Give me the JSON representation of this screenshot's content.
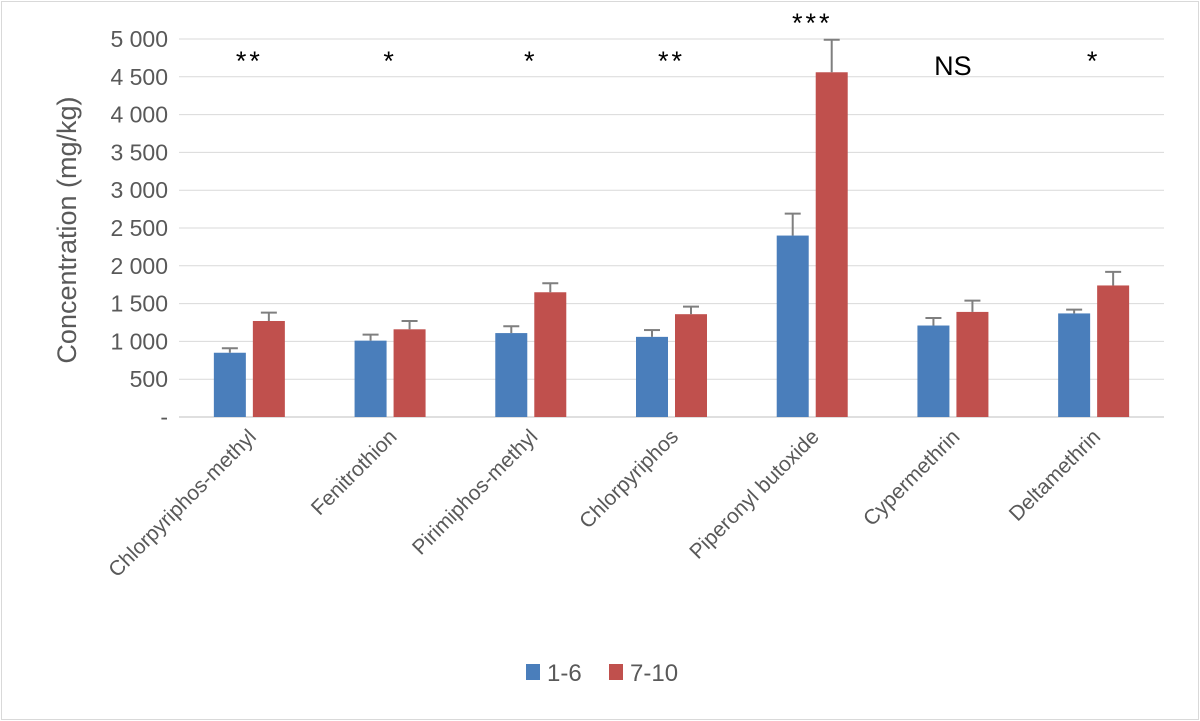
{
  "chart_data": {
    "type": "bar",
    "title": "",
    "xlabel": "",
    "ylabel": "Concentration (mg/kg)",
    "ylim": [
      0,
      5000
    ],
    "yticks": [
      {
        "value": 0,
        "label": "-"
      },
      {
        "value": 500,
        "label": "500"
      },
      {
        "value": 1000,
        "label": "1 000"
      },
      {
        "value": 1500,
        "label": "1 500"
      },
      {
        "value": 2000,
        "label": "2 000"
      },
      {
        "value": 2500,
        "label": "2 500"
      },
      {
        "value": 3000,
        "label": "3 000"
      },
      {
        "value": 3500,
        "label": "3 500"
      },
      {
        "value": 4000,
        "label": "4 000"
      },
      {
        "value": 4500,
        "label": "4 500"
      },
      {
        "value": 5000,
        "label": "5 000"
      }
    ],
    "grid": true,
    "legend_position": "bottom",
    "categories": [
      "Chlorpyriphos-methyl",
      "Fenitrothion",
      "Pirimiphos-methyl",
      "Chlorpyriphos",
      "Piperonyl butoxide",
      "Cypermethrin",
      "Deltamethrin"
    ],
    "series": [
      {
        "name": "1-6",
        "color": "#4a7ebb",
        "values": [
          850,
          1010,
          1110,
          1060,
          2400,
          1210,
          1370
        ],
        "errors": [
          60,
          80,
          90,
          90,
          290,
          100,
          50
        ]
      },
      {
        "name": "7-10",
        "color": "#c0504d",
        "values": [
          1270,
          1160,
          1650,
          1360,
          4560,
          1390,
          1740
        ],
        "errors": [
          110,
          110,
          120,
          100,
          430,
          150,
          180
        ]
      }
    ],
    "significance": [
      "**",
      "*",
      "*",
      "**",
      "***",
      "NS",
      "*"
    ]
  }
}
